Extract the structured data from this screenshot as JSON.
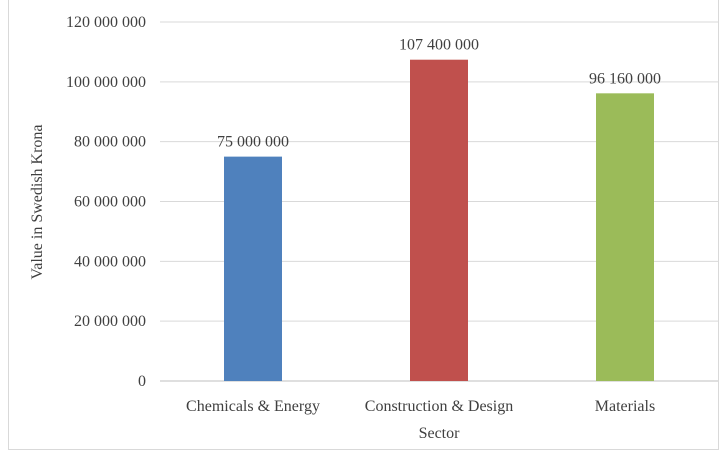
{
  "chart_data": {
    "type": "bar",
    "categories": [
      "Chemicals & Energy",
      "Construction & Design",
      "Materials"
    ],
    "values": [
      75000000,
      107400000,
      96160000
    ],
    "value_labels": [
      "75 000 000",
      "107 400 000",
      "96 160 000"
    ],
    "colors": [
      "#4f81bd",
      "#c0504d",
      "#9bbb59"
    ],
    "ylim": [
      0,
      120000000
    ],
    "yticks": [
      0,
      20000000,
      40000000,
      60000000,
      80000000,
      100000000,
      120000000
    ],
    "ytick_labels": [
      "0",
      "20 000 000",
      "40 000 000",
      "60 000 000",
      "80 000 000",
      "100 000 000",
      "120 000 000"
    ],
    "xlabel": "Sector",
    "ylabel": "Value in Swedish Krona",
    "grid": true,
    "gridline_color": "#d9d9d9",
    "axis_color": "#bfbfbf"
  }
}
